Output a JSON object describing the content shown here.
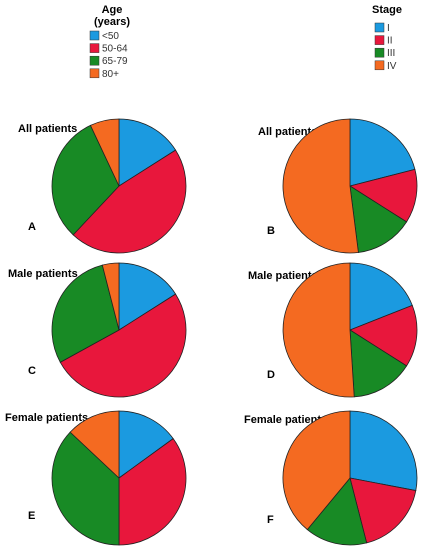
{
  "legends": [
    {
      "title_lines": [
        "Age",
        "(years)"
      ],
      "entries": [
        {
          "label": "<50",
          "color": "#1b9ae0"
        },
        {
          "label": "50-64",
          "color": "#e8173c"
        },
        {
          "label": "65-79",
          "color": "#188a25"
        },
        {
          "label": "80+",
          "color": "#f46a21"
        }
      ]
    },
    {
      "title_lines": [
        "Stage"
      ],
      "entries": [
        {
          "label": "I",
          "color": "#1b9ae0"
        },
        {
          "label": "II",
          "color": "#e8173c"
        },
        {
          "label": "III",
          "color": "#188a25"
        },
        {
          "label": "IV",
          "color": "#f46a21"
        }
      ]
    }
  ],
  "chart_data": [
    {
      "type": "pie",
      "title": "All patients",
      "panel": "A",
      "legend": 0,
      "labels": [
        "<50",
        "50-64",
        "65-79",
        "80+"
      ],
      "values": [
        16,
        46,
        31,
        7
      ]
    },
    {
      "type": "pie",
      "title": "All patients",
      "panel": "B",
      "legend": 1,
      "labels": [
        "I",
        "II",
        "III",
        "IV"
      ],
      "values": [
        21,
        13,
        14,
        52
      ]
    },
    {
      "type": "pie",
      "title": "Male patients",
      "panel": "C",
      "legend": 0,
      "labels": [
        "<50",
        "50-64",
        "65-79",
        "80+"
      ],
      "values": [
        16,
        51,
        29,
        4
      ]
    },
    {
      "type": "pie",
      "title": "Male patients",
      "panel": "D",
      "legend": 1,
      "labels": [
        "I",
        "II",
        "III",
        "IV"
      ],
      "values": [
        19,
        15,
        15,
        51
      ]
    },
    {
      "type": "pie",
      "title": "Female patients",
      "panel": "E",
      "legend": 0,
      "labels": [
        "<50",
        "50-64",
        "65-79",
        "80+"
      ],
      "values": [
        15,
        35,
        37,
        13
      ]
    },
    {
      "type": "pie",
      "title": "Female patients",
      "panel": "F",
      "legend": 1,
      "labels": [
        "I",
        "II",
        "III",
        "IV"
      ],
      "values": [
        28,
        18,
        15,
        39
      ]
    }
  ]
}
